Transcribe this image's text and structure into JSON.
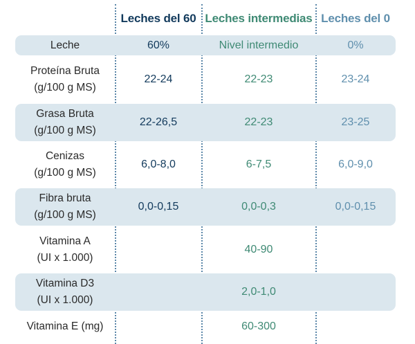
{
  "header": {
    "col1": "Leches del 60",
    "col2": "Leches intermedias",
    "col3": "Leches del 0"
  },
  "rows": [
    {
      "label1": "Leche",
      "label2": "",
      "v60": "60%",
      "vint": "Nivel intermedio",
      "v0": "0%"
    },
    {
      "label1": "Proteína Bruta",
      "label2": "(g/100 g MS)",
      "v60": "22-24",
      "vint": "22-23",
      "v0": "23-24"
    },
    {
      "label1": "Grasa Bruta",
      "label2": "(g/100 g MS)",
      "v60": "22-26,5",
      "vint": "22-23",
      "v0": "23-25"
    },
    {
      "label1": "Cenizas",
      "label2": "(g/100 g MS)",
      "v60": "6,0-8,0",
      "vint": "6-7,5",
      "v0": "6,0-9,0"
    },
    {
      "label1": "Fibra bruta",
      "label2": "(g/100 g MS)",
      "v60": "0,0-0,15",
      "vint": "0,0-0,3",
      "v0": "0,0-0,15"
    },
    {
      "label1": "Vitamina A",
      "label2": "(UI x 1.000)",
      "v60": "",
      "vint": "40-90",
      "v0": ""
    },
    {
      "label1": "Vitamina D3",
      "label2": "(UI x 1.000)",
      "v60": "",
      "vint": "2,0-1,0",
      "v0": ""
    },
    {
      "label1": "Vitamina E (mg)",
      "label2": "",
      "v60": "",
      "vint": "60-300",
      "v0": ""
    }
  ],
  "colors": {
    "col1": "#123a5c",
    "col2": "#3f8a74",
    "col3": "#5f8fad",
    "shade": "#dbe7ee"
  }
}
